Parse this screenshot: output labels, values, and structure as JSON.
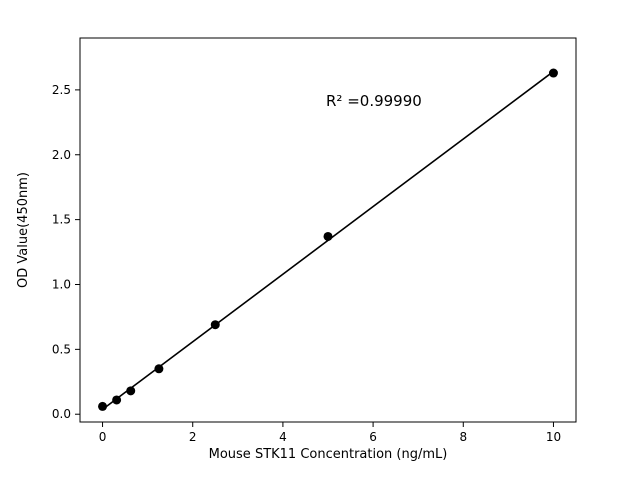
{
  "chart_data": {
    "type": "scatter",
    "title": "",
    "xlabel": "Mouse STK11 Concentration (ng/mL)",
    "ylabel": "OD Value(450nm)",
    "annotation": "R² =0.99990",
    "x": [
      0,
      0.3125,
      0.625,
      1.25,
      2.5,
      5,
      10
    ],
    "y": [
      0.06,
      0.11,
      0.18,
      0.35,
      0.69,
      1.37,
      2.63
    ],
    "xlim": [
      -0.5,
      10.5
    ],
    "ylim": [
      -0.06,
      2.9
    ],
    "x_ticks": [
      0,
      2,
      4,
      6,
      8,
      10
    ],
    "x_tick_labels": [
      "0",
      "2",
      "4",
      "6",
      "8",
      "10"
    ],
    "y_ticks": [
      0.0,
      0.5,
      1.0,
      1.5,
      2.0,
      2.5
    ],
    "y_tick_labels": [
      "0.0",
      "0.5",
      "1.0",
      "1.5",
      "2.0",
      "2.5"
    ],
    "grid": false,
    "legend": false,
    "line_color": "#000000",
    "marker_color": "#000000",
    "axis_color": "#000000",
    "background": "#ffffff",
    "fit_line": true
  }
}
